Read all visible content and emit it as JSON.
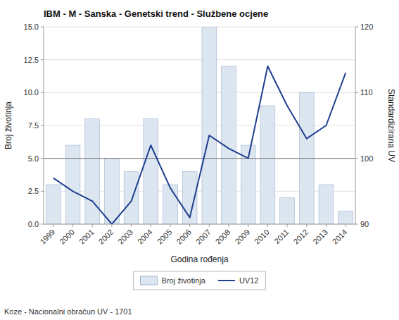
{
  "chart_data": {
    "type": "bar",
    "title": "IBM - M - Sanska - Genetski trend - Službene ocjene",
    "x_label": "Godina rođenja",
    "y_label": "Broj životinja",
    "y2_label": "Standardizirana UV",
    "footer": "Koze - Nacionalni obračun UV - 1701",
    "categories": [
      "1999",
      "2000",
      "2001",
      "2002",
      "2003",
      "2004",
      "2005",
      "2006",
      "2007",
      "2008",
      "2009",
      "2010",
      "2011",
      "2012",
      "2013",
      "2014"
    ],
    "series": [
      {
        "name": "Broj životinja",
        "type": "bar",
        "color": "#dce6f1",
        "values": [
          3,
          6,
          8,
          5,
          4,
          8,
          3,
          4,
          15,
          12,
          6,
          9,
          2,
          10,
          3,
          1
        ]
      },
      {
        "name": "UV12",
        "type": "line",
        "axis": "y2",
        "color": "#1f3f8f",
        "values": [
          97.0,
          95.0,
          93.5,
          90.0,
          93.5,
          102.0,
          95.5,
          91.0,
          103.5,
          101.5,
          100.0,
          114.0,
          108.0,
          103.0,
          105.0,
          113.0
        ]
      }
    ],
    "ylim": [
      0,
      15
    ],
    "yticks": [
      {
        "value": 0,
        "label": "0.0"
      },
      2.5,
      {
        "value": 5,
        "label": "5.0"
      },
      7.5,
      {
        "value": 10,
        "label": "10.0"
      },
      12.5,
      {
        "value": 15,
        "label": "15.0"
      }
    ],
    "y2lim": [
      90,
      120
    ],
    "y2ticks": [
      90,
      100,
      110,
      120
    ],
    "reference_line": 5,
    "grid": true,
    "legend": "bottom"
  }
}
